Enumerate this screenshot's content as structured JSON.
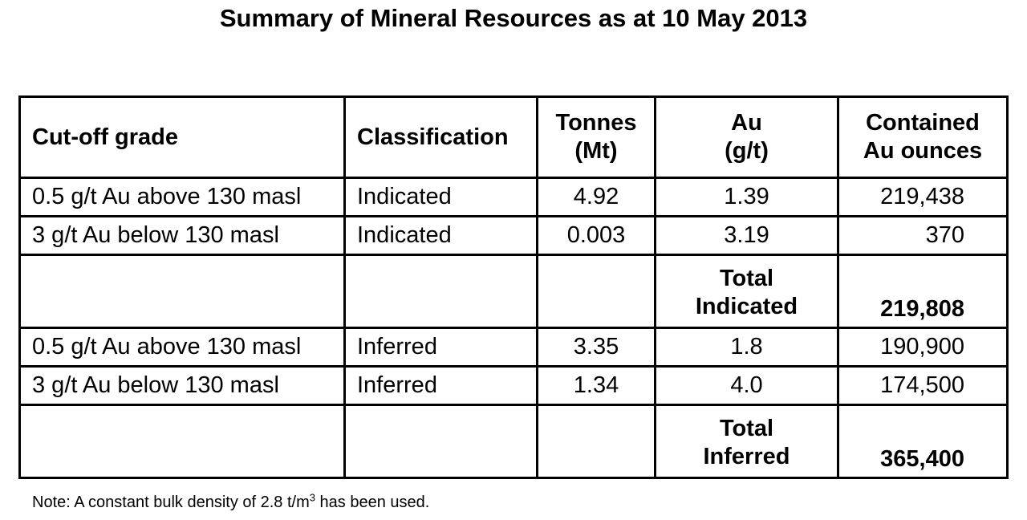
{
  "title": "Summary of Mineral Resources as at 10 May 2013",
  "table": {
    "headers": {
      "cutoff": "Cut-off grade",
      "classification": "Classification",
      "tonnes_line1": "Tonnes",
      "tonnes_line2": "(Mt)",
      "au_line1": "Au",
      "au_line2": "(g/t)",
      "ounces_line1": "Contained",
      "ounces_line2": "Au ounces"
    },
    "rows": [
      {
        "cutoff": "0.5 g/t Au above 130 masl",
        "classification": "Indicated",
        "tonnes": "4.92",
        "au": "1.39",
        "ounces": "219,438"
      },
      {
        "cutoff": "3 g/t Au below 130 masl",
        "classification": "Indicated",
        "tonnes": "0.003",
        "au": "3.19",
        "ounces": "370"
      },
      {
        "total_line1": "Total",
        "total_line2": "Indicated",
        "total_value": "219,808"
      },
      {
        "cutoff": "0.5 g/t Au above 130 masl",
        "classification": "Inferred",
        "tonnes": "3.35",
        "au": "1.8",
        "ounces": "190,900"
      },
      {
        "cutoff": "3 g/t Au below 130 masl",
        "classification": "Inferred",
        "tonnes": "1.34",
        "au": "4.0",
        "ounces": "174,500"
      },
      {
        "total_line1": "Total",
        "total_line2": "Inferred",
        "total_value": "365,400"
      }
    ]
  },
  "note": {
    "prefix": "Note: A constant bulk density of 2.8 t/m",
    "superscript": "3",
    "suffix": " has been used."
  }
}
